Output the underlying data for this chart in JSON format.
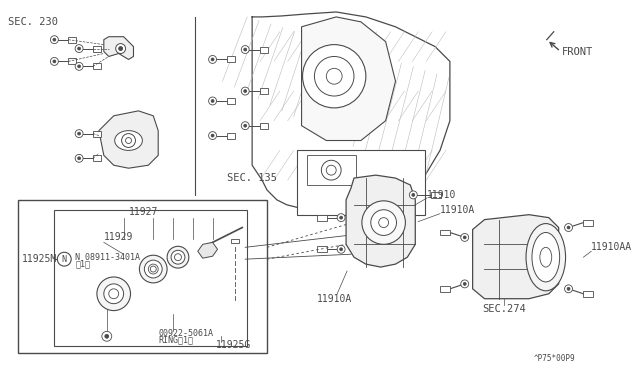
{
  "bg_color": "#ffffff",
  "line_color": "#4a4a4a",
  "hatch_color": "#aaaaaa",
  "labels": {
    "sec230": "SEC. 230",
    "sec135": "SEC. 135",
    "sec274": "SEC.274",
    "front": "FRONT",
    "part_code": "^P75*00P9",
    "n11927": "11927",
    "n11929": "11929",
    "n11925m": "11925M",
    "n11925g": "11925G",
    "n08911_a": "N 08911-3401A",
    "n08911_b": "（1）",
    "n00922_a": "00922-5061A",
    "n00922_b": "RING（1）",
    "n11910": "11910",
    "n11910a_top": "11910A",
    "n11910a_bot": "11910A",
    "n11910aa": "11910AA"
  },
  "font_size_small": 6.0,
  "font_size_med": 7.0,
  "font_size_section": 7.5
}
